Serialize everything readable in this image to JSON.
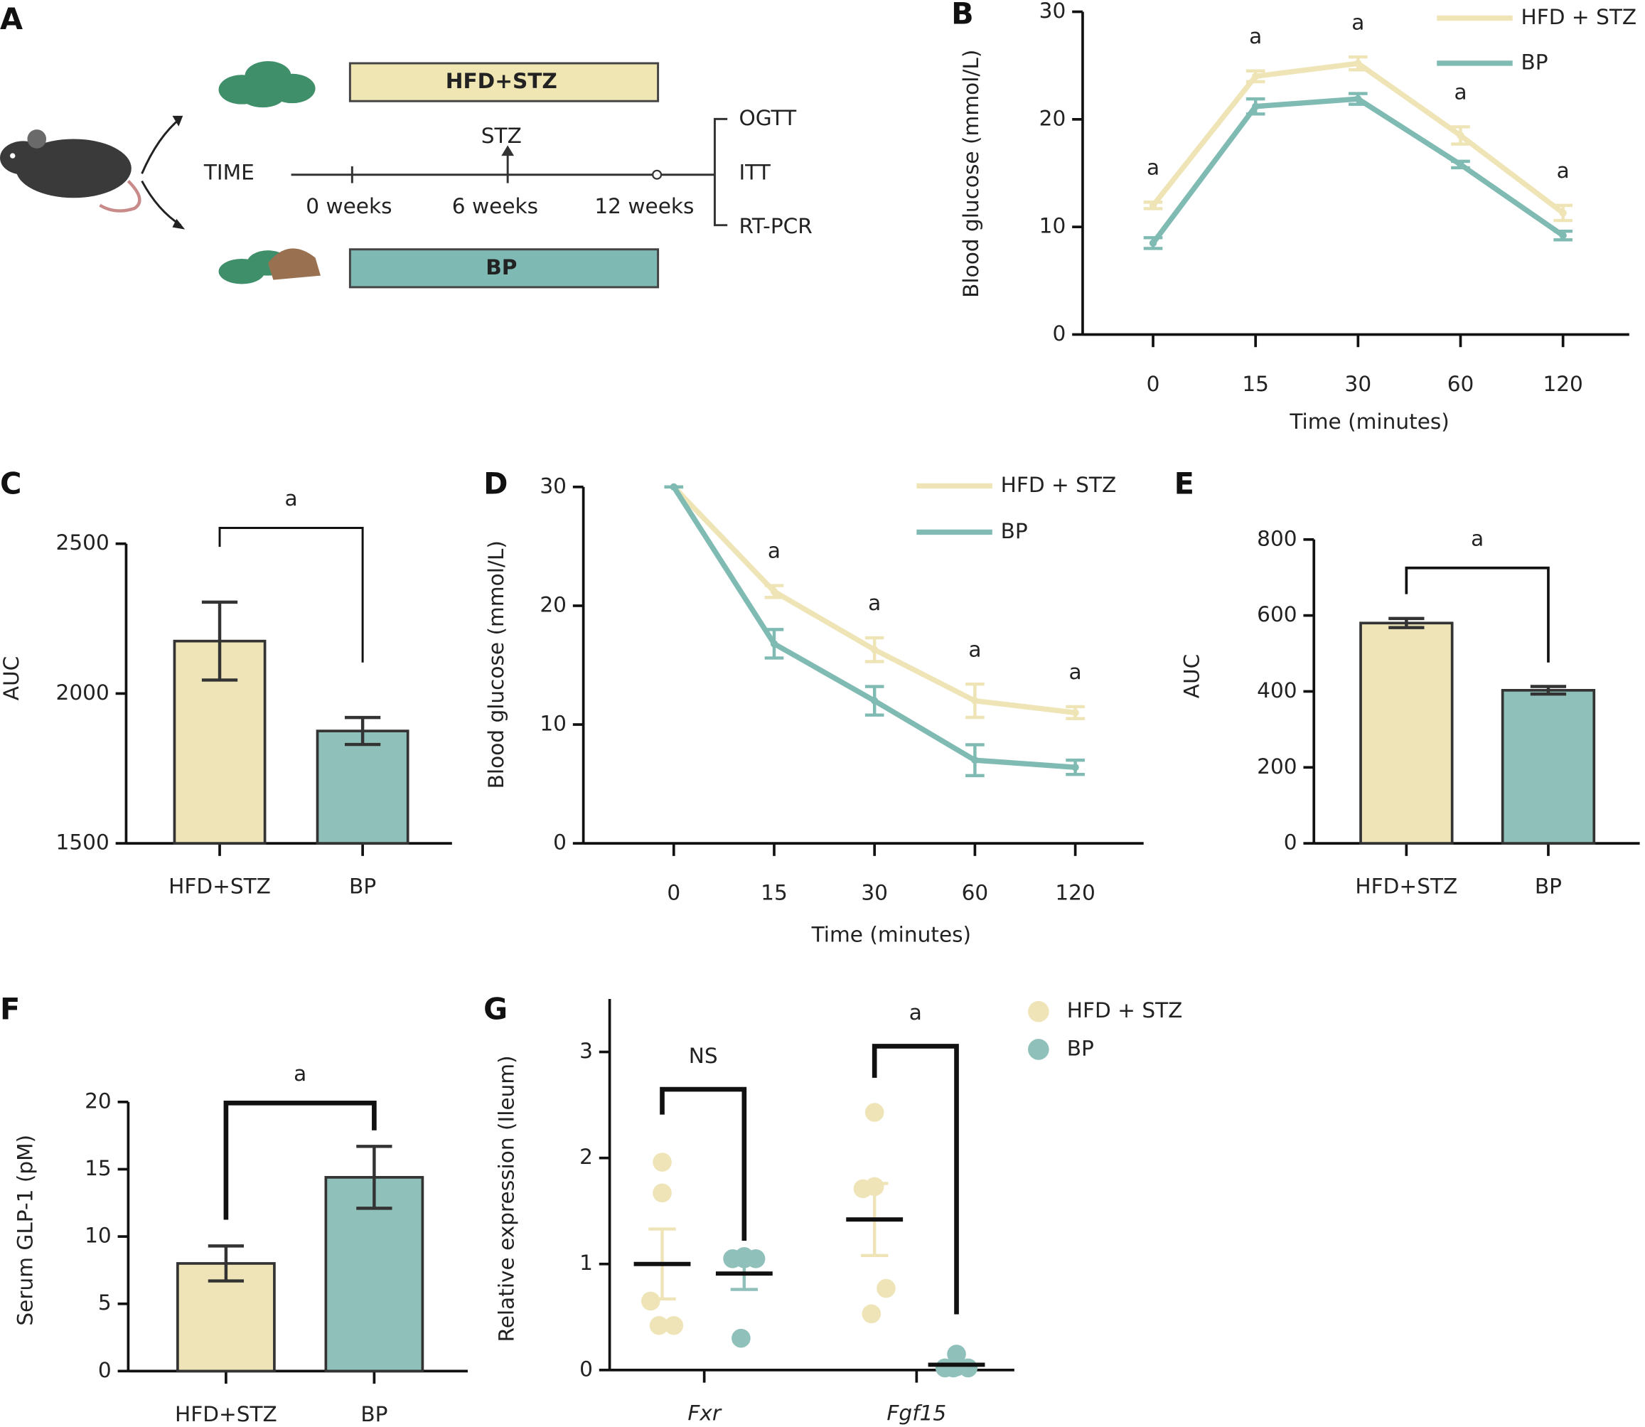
{
  "diagram": {
    "panel": "A",
    "groups": [
      "HFD+STZ",
      "BP"
    ],
    "timeline_label": "TIME",
    "injection": "STZ",
    "timepoints": [
      "0 weeks",
      "6 weeks",
      "12 weeks"
    ],
    "assays": [
      "OGTT",
      "ITT",
      "RT-PCR"
    ]
  },
  "chart_data": [
    {
      "panel": "B",
      "type": "line",
      "xlabel": "Time (minutes)",
      "ylabel": "Blood glucose (mmol/L)",
      "categories": [
        "0",
        "15",
        "30",
        "60",
        "120"
      ],
      "ylim": [
        0,
        30
      ],
      "yticks": [
        0,
        10,
        20,
        30
      ],
      "legend": "upper right",
      "annotations": [
        "a",
        "a",
        "a",
        "a",
        "a"
      ],
      "series": [
        {
          "name": "HFD + STZ",
          "color": "#eee4b6",
          "values": [
            12,
            24,
            25.2,
            18.5,
            11.3
          ],
          "errors": [
            0.3,
            0.5,
            0.6,
            0.8,
            0.7
          ]
        },
        {
          "name": "BP",
          "color": "#7fbab3",
          "values": [
            8.5,
            21.2,
            21.9,
            15.8,
            9.2
          ],
          "errors": [
            0.5,
            0.7,
            0.5,
            0.3,
            0.4
          ]
        }
      ]
    },
    {
      "panel": "C",
      "type": "bar",
      "ylabel": "AUC",
      "categories": [
        "HFD+STZ",
        "BP"
      ],
      "values": [
        2175,
        1875
      ],
      "errors": [
        130,
        45
      ],
      "colors": [
        "#efe4b8",
        "#8fc0ba"
      ],
      "ylim": [
        1500,
        2500
      ],
      "yticks": [
        1500,
        2000,
        2500
      ],
      "significance": "a"
    },
    {
      "panel": "D",
      "type": "line",
      "xlabel": "Time (minutes)",
      "ylabel": "Blood glucose (mmol/L)",
      "categories": [
        "0",
        "15",
        "30",
        "60",
        "120"
      ],
      "ylim": [
        0,
        30
      ],
      "yticks": [
        0,
        10,
        20,
        30
      ],
      "legend": "upper right",
      "annotations": [
        null,
        "a",
        "a",
        "a",
        "a"
      ],
      "series": [
        {
          "name": "HFD + STZ",
          "color": "#eee4b6",
          "values": [
            30,
            21.2,
            16.3,
            12,
            11
          ],
          "errors": [
            0,
            0.5,
            1,
            1.4,
            0.5
          ]
        },
        {
          "name": "BP",
          "color": "#7fbab3",
          "values": [
            30,
            16.8,
            12,
            7,
            6.4
          ],
          "errors": [
            0,
            1.2,
            1.2,
            1.3,
            0.6
          ]
        }
      ]
    },
    {
      "panel": "E",
      "type": "bar",
      "ylabel": "AUC",
      "categories": [
        "HFD+STZ",
        "BP"
      ],
      "values": [
        580,
        403
      ],
      "errors": [
        12,
        10
      ],
      "colors": [
        "#efe4b8",
        "#8fc0ba"
      ],
      "ylim": [
        0,
        800
      ],
      "yticks": [
        0,
        200,
        400,
        600,
        800
      ],
      "significance": "a"
    },
    {
      "panel": "F",
      "type": "bar",
      "ylabel": "Serum GLP-1 (pM)",
      "categories": [
        "HFD+STZ",
        "BP"
      ],
      "values": [
        8,
        14.4
      ],
      "errors": [
        1.3,
        2.3
      ],
      "colors": [
        "#efe4b8",
        "#8fc0ba"
      ],
      "ylim": [
        0,
        20
      ],
      "yticks": [
        0,
        5,
        10,
        15,
        20
      ],
      "significance": "a"
    },
    {
      "panel": "G",
      "type": "dot",
      "ylabel": "Relative expression (Ileum)",
      "categories": [
        "Fxr",
        "Fgf15"
      ],
      "ylim": [
        0,
        3.5
      ],
      "yticks": [
        0,
        1,
        2,
        3
      ],
      "legend": "upper right",
      "significance": [
        "NS",
        "a"
      ],
      "series": [
        {
          "name": "HFD + STZ",
          "color": "#efe4b8",
          "values": [
            1.0,
            1.42
          ],
          "errors": [
            0.33,
            0.34
          ],
          "points": [
            [
              1.96,
              1.67,
              0.65,
              0.42,
              0.42
            ],
            [
              2.43,
              1.73,
              1.71,
              0.77,
              0.53
            ]
          ]
        },
        {
          "name": "BP",
          "color": "#8fc0ba",
          "values": [
            0.91,
            0.05
          ],
          "errors": [
            0.15,
            0.03
          ],
          "points": [
            [
              1.07,
              1.05,
              1.05,
              1.05,
              0.3
            ],
            [
              0.15,
              0.03,
              0.02,
              0.02,
              0.02
            ]
          ]
        }
      ]
    }
  ]
}
